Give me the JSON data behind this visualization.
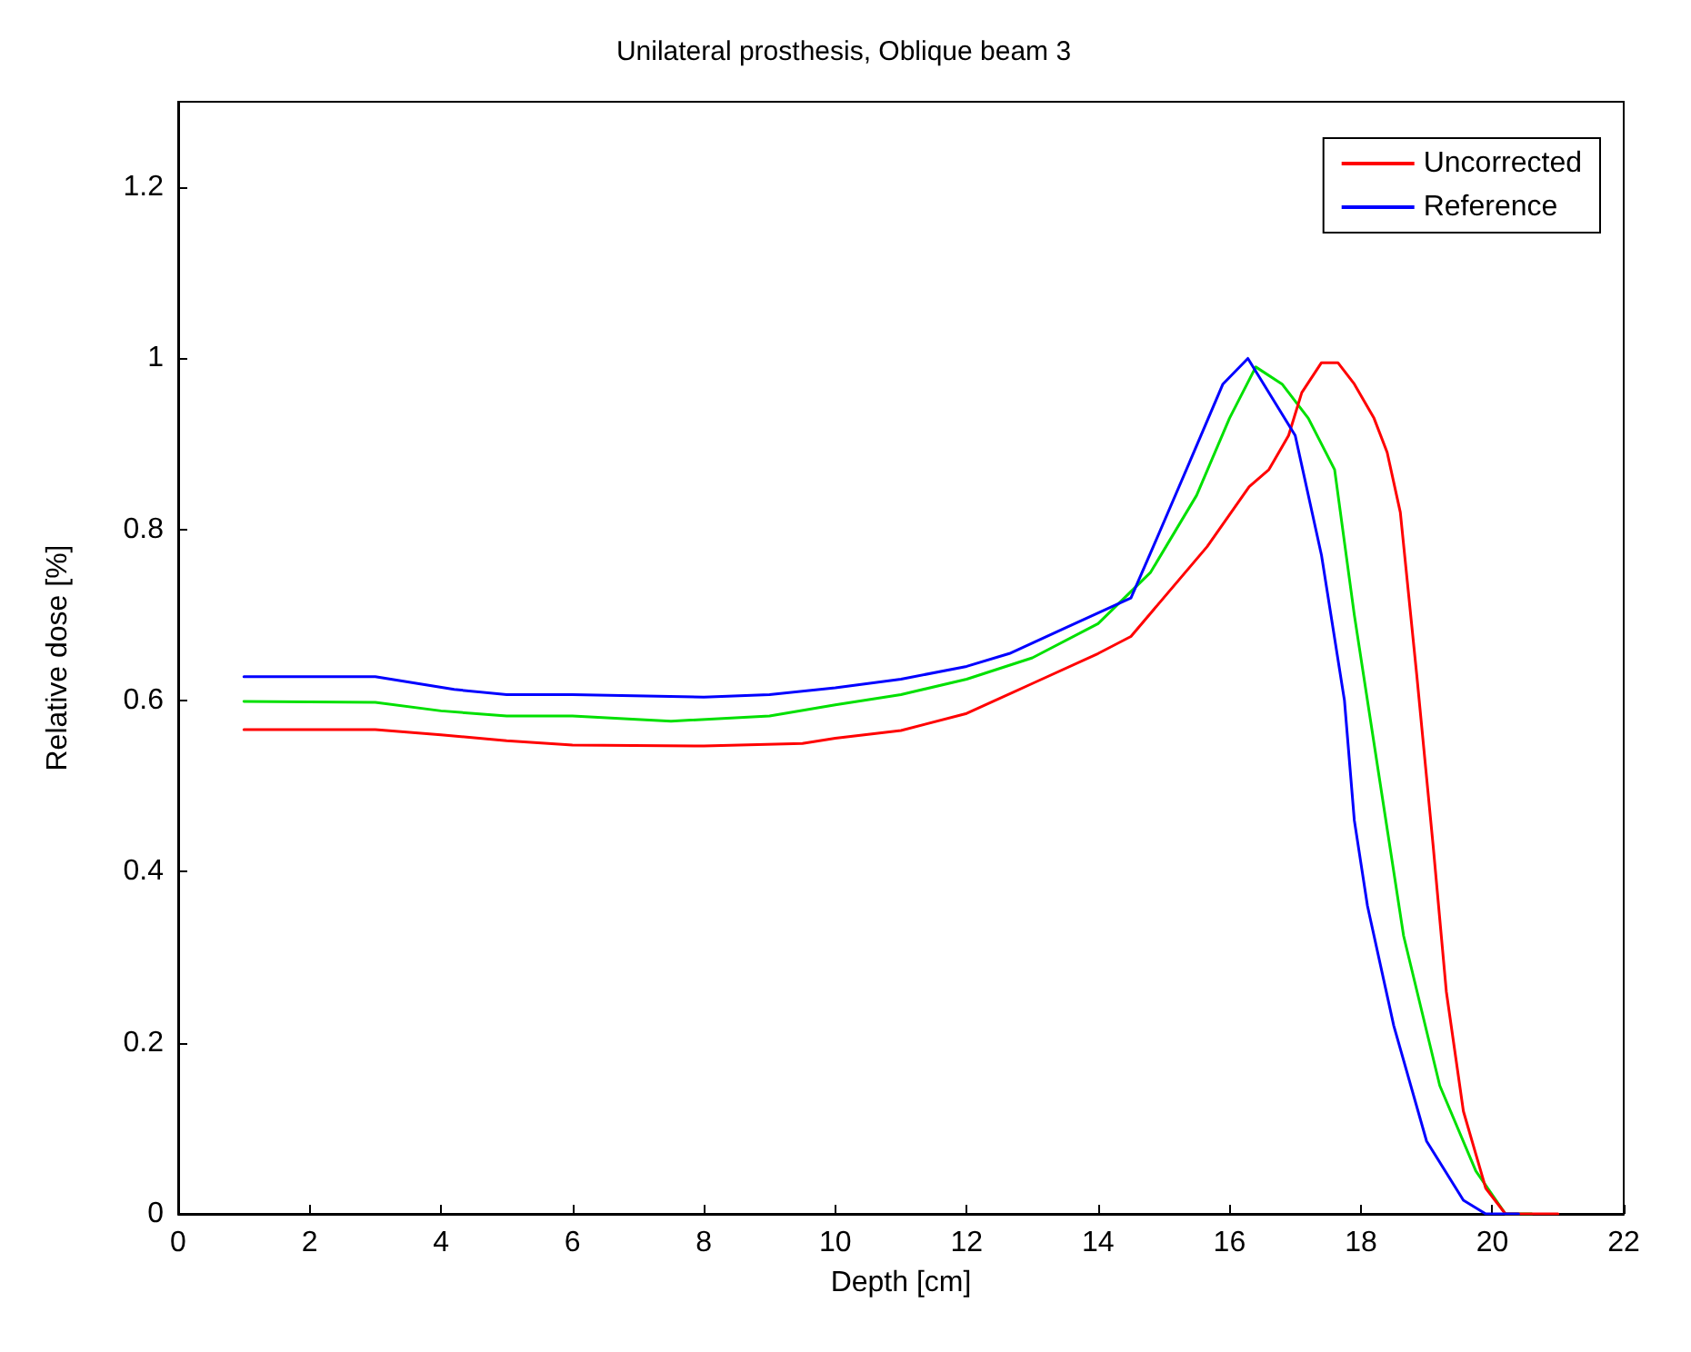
{
  "chart_data": {
    "type": "line",
    "title": "Unilateral prosthesis, Oblique beam 3",
    "xlabel": "Depth [cm]",
    "ylabel": "Relative dose [%]",
    "xlim": [
      0,
      22
    ],
    "xticks": [
      0,
      2,
      4,
      6,
      8,
      10,
      12,
      14,
      16,
      18,
      20,
      22
    ],
    "ylim": [
      0,
      1.3
    ],
    "yticks": [
      0,
      0.2,
      0.4,
      0.6,
      0.8,
      1,
      1.2
    ],
    "grid": false,
    "legend": "top right",
    "marker": "none",
    "line_style": "solid",
    "series": [
      {
        "color": "#00e000",
        "x": [
          1,
          3,
          4,
          5,
          6,
          7.5,
          9,
          10,
          11,
          12,
          13,
          14,
          14.8,
          15.5,
          16,
          16.4,
          16.8,
          17.2,
          17.6,
          17.9,
          18.3,
          18.65,
          19.2,
          19.75,
          20.2,
          20.6
        ],
        "values": [
          0.599,
          0.598,
          0.588,
          0.582,
          0.582,
          0.576,
          0.582,
          0.595,
          0.607,
          0.625,
          0.65,
          0.69,
          0.75,
          0.84,
          0.93,
          0.99,
          0.97,
          0.93,
          0.87,
          0.7,
          0.5,
          0.325,
          0.15,
          0.05,
          0.0,
          0.0
        ]
      },
      {
        "name": "Uncorrected",
        "color": "#ff0000",
        "x": [
          1,
          3,
          4,
          5,
          6,
          8,
          9.5,
          10,
          11,
          12,
          13,
          14,
          14.5,
          15.66,
          16.3,
          16.6,
          16.9,
          17.1,
          17.4,
          17.65,
          17.9,
          18.2,
          18.4,
          18.6,
          18.85,
          19.1,
          19.3,
          19.56,
          19.9,
          20.2,
          21
        ],
        "values": [
          0.566,
          0.566,
          0.56,
          0.553,
          0.548,
          0.547,
          0.55,
          0.556,
          0.565,
          0.585,
          0.62,
          0.655,
          0.675,
          0.78,
          0.85,
          0.87,
          0.91,
          0.96,
          0.995,
          0.995,
          0.97,
          0.93,
          0.89,
          0.82,
          0.63,
          0.43,
          0.26,
          0.12,
          0.03,
          0.0,
          0.0
        ]
      },
      {
        "name": "Reference",
        "color": "#0000ff",
        "x": [
          1,
          3,
          4.2,
          5,
          6,
          8,
          9,
          10,
          11,
          12,
          12.65,
          13.5,
          14.5,
          14.84,
          15.4,
          15.9,
          16.28,
          17,
          17.4,
          17.75,
          17.9,
          18.1,
          18.5,
          19,
          19.56,
          19.9,
          20.4
        ],
        "values": [
          0.628,
          0.628,
          0.613,
          0.607,
          0.607,
          0.604,
          0.607,
          0.615,
          0.625,
          0.64,
          0.655,
          0.685,
          0.72,
          0.78,
          0.88,
          0.97,
          1.0,
          0.91,
          0.77,
          0.6,
          0.46,
          0.36,
          0.22,
          0.085,
          0.016,
          0.0,
          0.0
        ]
      }
    ]
  }
}
